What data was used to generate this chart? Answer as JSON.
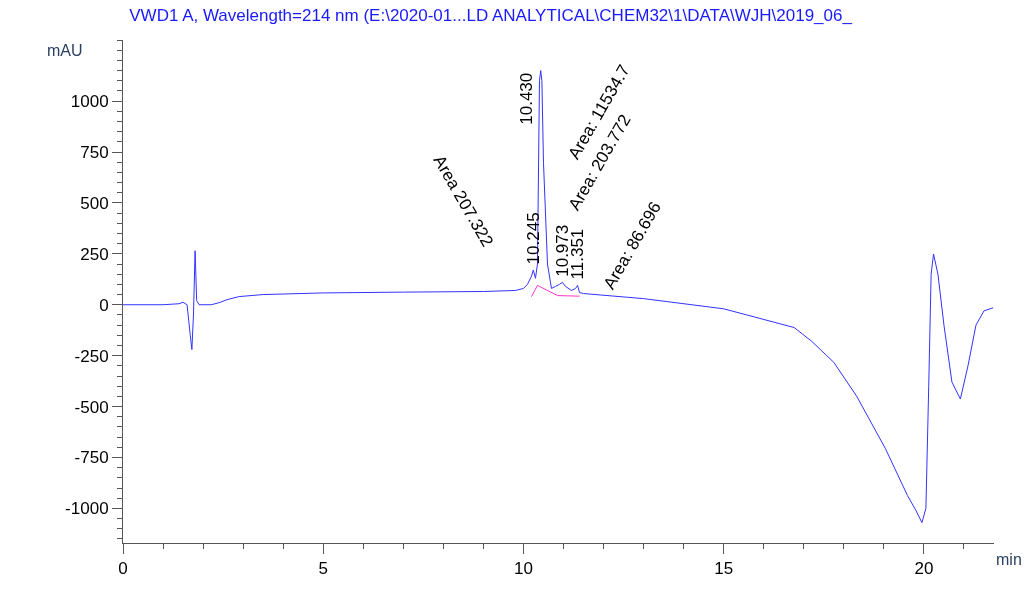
{
  "chart_data": {
    "type": "line",
    "title": "VWD1 A, Wavelength=214 nm (E:\\2020-01...LD ANALYTICAL\\CHEM32\\1\\DATA\\WJH\\2019_06_",
    "xlabel": "min",
    "ylabel": "mAU",
    "series": [
      {
        "color": "#3333ff",
        "x": [
          0,
          0.5,
          1.0,
          1.4,
          1.5,
          1.6,
          1.68,
          1.72,
          1.76,
          1.8,
          1.84,
          1.9,
          2.0,
          2.2,
          2.4,
          2.6,
          2.9,
          3.5,
          5,
          7,
          9,
          9.8,
          10.0,
          10.1,
          10.2,
          10.245,
          10.3,
          10.35,
          10.4,
          10.43,
          10.46,
          10.5,
          10.6,
          10.7,
          10.8,
          10.9,
          10.973,
          11.05,
          11.2,
          11.3,
          11.351,
          11.4,
          11.5,
          13,
          15,
          16.76,
          17.2,
          17.75,
          18.32,
          19.04,
          19.59,
          19.8,
          19.95,
          20.05,
          20.12,
          20.18,
          20.24,
          20.35,
          20.5,
          20.7,
          20.91,
          21.1,
          21.3,
          21.5,
          21.73
        ],
        "values": [
          0,
          0,
          0,
          5,
          12,
          0,
          -150,
          -220,
          -50,
          265,
          20,
          0,
          0,
          0,
          10,
          25,
          40,
          50,
          58,
          62,
          65,
          70,
          80,
          100,
          140,
          170,
          130,
          200,
          1100,
          1150,
          1100,
          700,
          200,
          80,
          90,
          100,
          110,
          90,
          70,
          80,
          95,
          60,
          55,
          30,
          -20,
          -112,
          -180,
          -283,
          -449,
          -707,
          -937,
          -1010,
          -1070,
          -1000,
          -400,
          150,
          249,
          150,
          -100,
          -380,
          -463,
          -300,
          -100,
          -30,
          -15
        ]
      },
      {
        "color": "#ff33cc",
        "x": [
          10.2,
          10.35,
          10.85,
          11.4
        ],
        "values": [
          40,
          95,
          45,
          42
        ]
      }
    ],
    "xlim": [
      0,
      21.75
    ],
    "xticks": [
      0,
      5,
      10,
      15,
      20
    ],
    "ylim": [
      -1170,
      1300
    ],
    "yticks": [
      -1000,
      -750,
      -500,
      -250,
      0,
      250,
      500,
      750,
      1000
    ],
    "annotations": [
      {
        "text": "10.245",
        "x": 10.245,
        "y": 170
      },
      {
        "text": "10.430",
        "x": 10.43,
        "y": 1150
      },
      {
        "text": "10.973",
        "x": 10.973,
        "y": 110
      },
      {
        "text": "11.351",
        "x": 11.351,
        "y": 95
      },
      "Area 207.322",
      "Area: 11534.7",
      "Area: 203.772",
      "Area: 86.696"
    ]
  }
}
